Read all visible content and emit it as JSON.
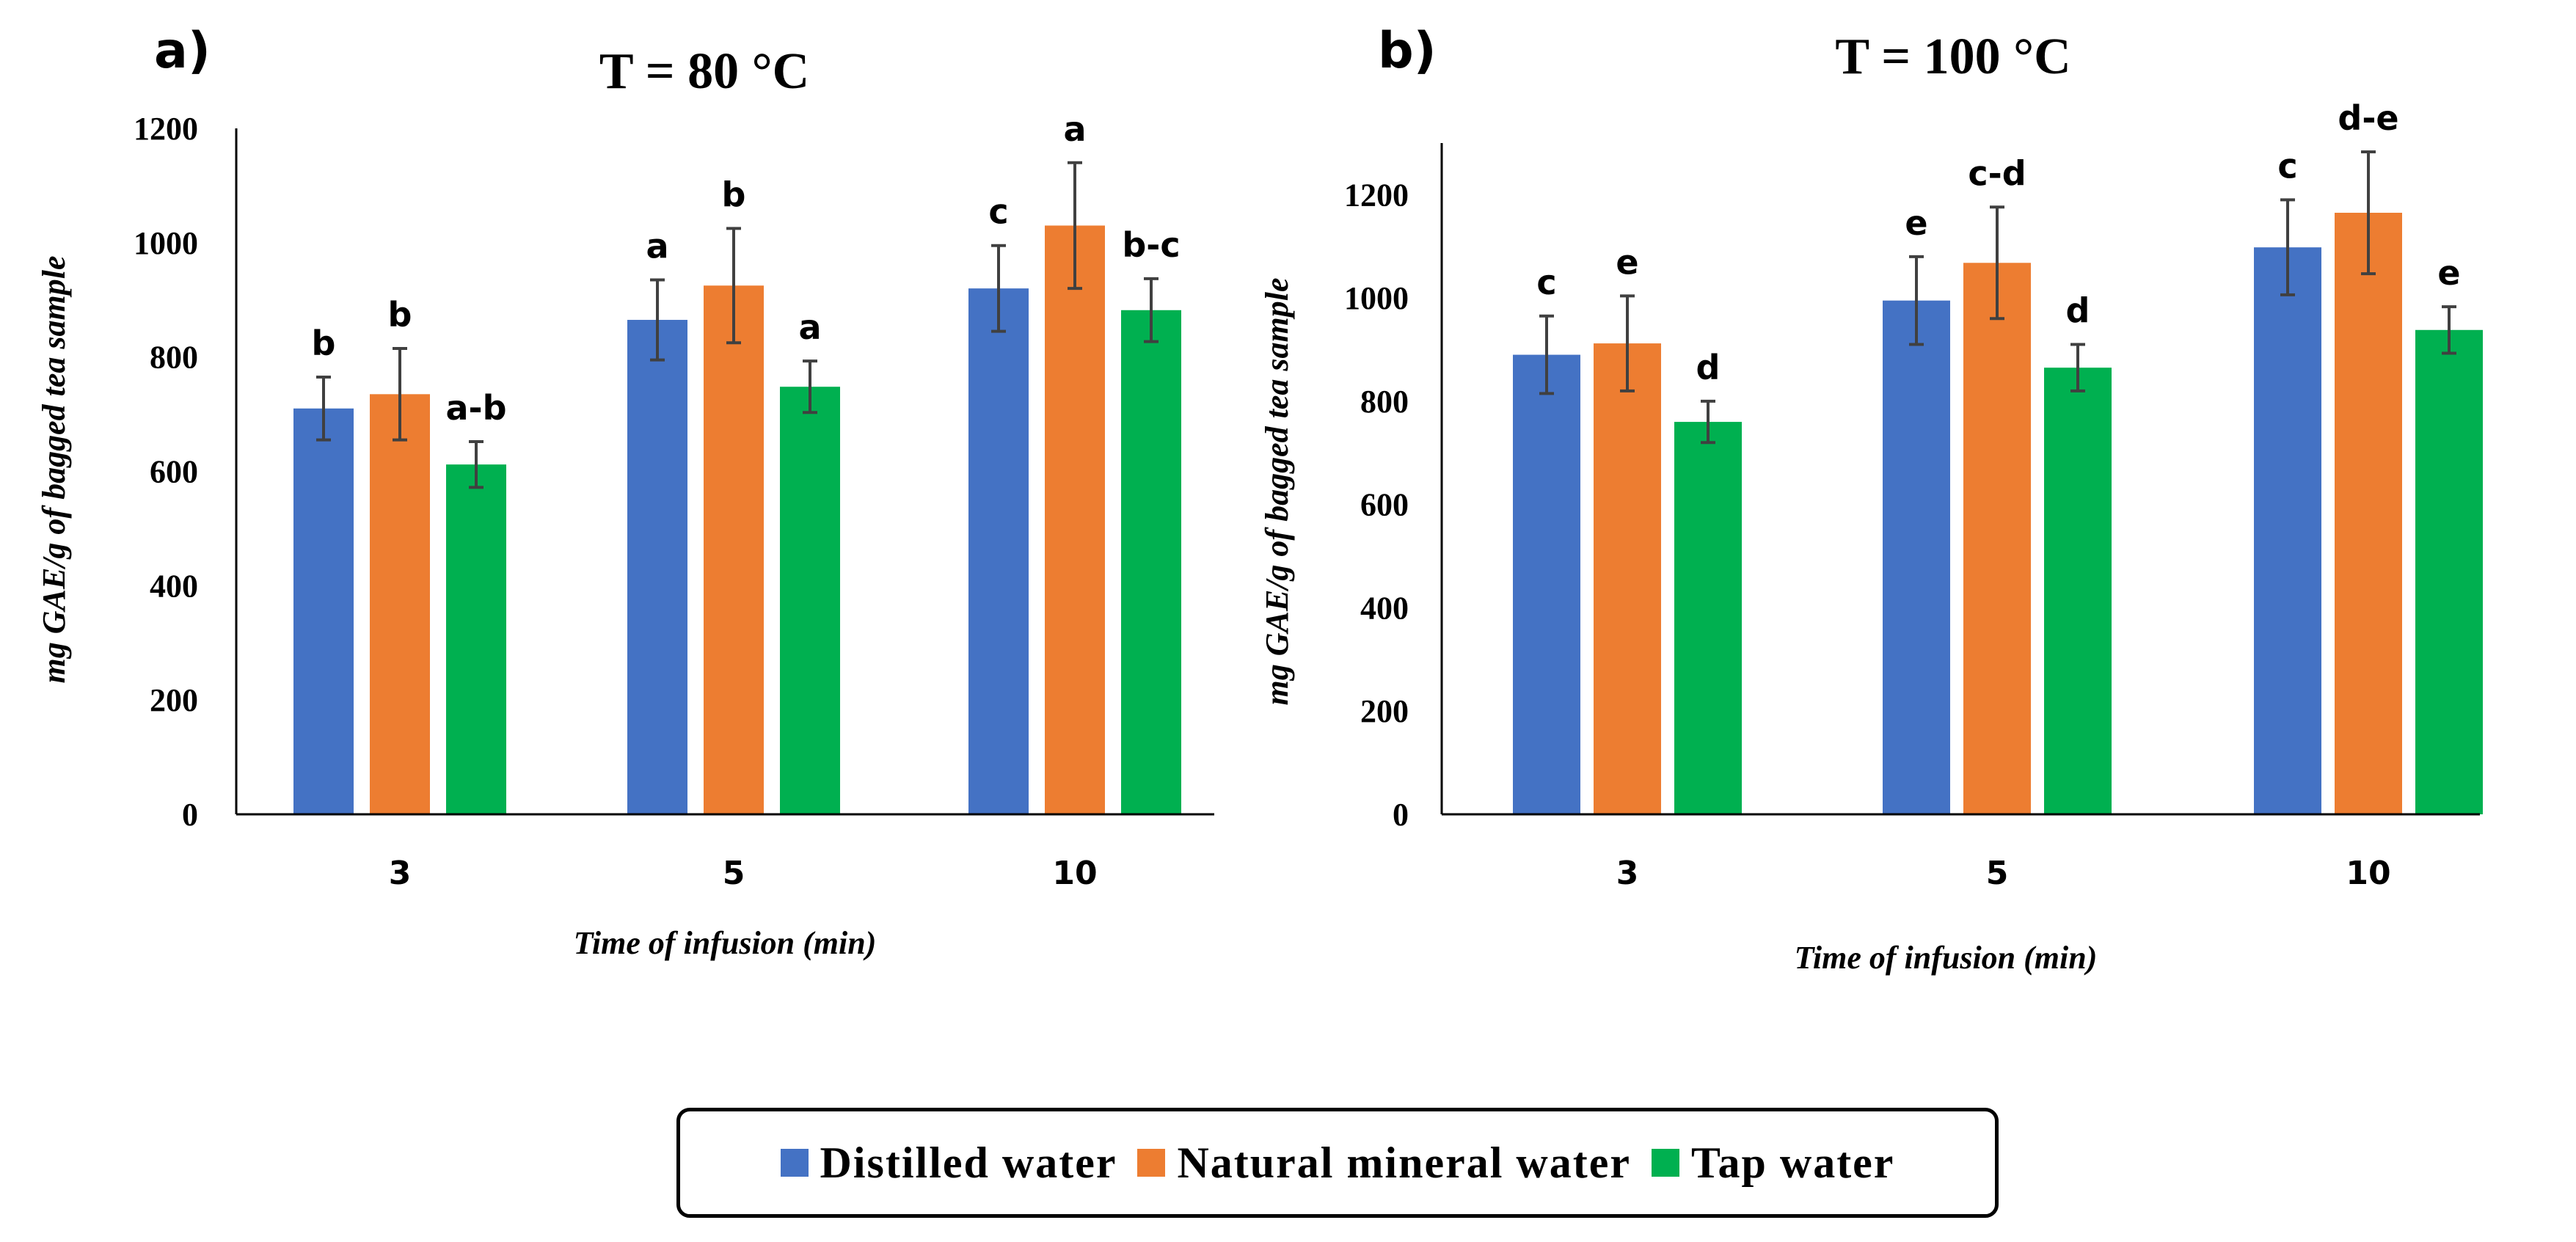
{
  "colors": {
    "distilled": "#4472C4",
    "mineral": "#ED7D31",
    "tap": "#00B050",
    "axis": "#000000",
    "errorbar": "#404040"
  },
  "legend": [
    {
      "key": "distilled",
      "label": "Distilled water"
    },
    {
      "key": "mineral",
      "label": "Natural mineral water"
    },
    {
      "key": "tap",
      "label": "Tap water"
    }
  ],
  "chart_data": [
    {
      "type": "bar",
      "panel": "a)",
      "title": "T = 80 °C",
      "xlabel": "Time of infusion (min)",
      "ylabel": "mg GAE/g of bagged tea sample",
      "categories": [
        "3",
        "5",
        "10"
      ],
      "ylim": [
        0,
        1200
      ],
      "yticks": [
        "0",
        "200",
        "400",
        "600",
        "800",
        "1000",
        "1200"
      ],
      "series": [
        {
          "key": "distilled",
          "name": "Distilled water",
          "values": [
            710,
            865,
            920
          ],
          "errors": [
            55,
            70,
            75
          ],
          "labels": [
            "b",
            "a",
            "c"
          ]
        },
        {
          "key": "mineral",
          "name": "Natural mineral water",
          "values": [
            735,
            925,
            1030
          ],
          "errors": [
            80,
            100,
            110
          ],
          "labels": [
            "b",
            "b",
            "a"
          ]
        },
        {
          "key": "tap",
          "name": "Tap water",
          "values": [
            612,
            748,
            882
          ],
          "errors": [
            40,
            45,
            55
          ],
          "labels": [
            "a-b",
            "a",
            "b-c"
          ]
        }
      ]
    },
    {
      "type": "bar",
      "panel": "b)",
      "title": "T = 100 °C",
      "xlabel": "Time of infusion (min)",
      "ylabel": "mg GAE/g of bagged tea sample",
      "categories": [
        "3",
        "5",
        "10"
      ],
      "ylim": [
        0,
        1300
      ],
      "yticks": [
        "0",
        "200",
        "400",
        "600",
        "800",
        "1000",
        "1200"
      ],
      "series": [
        {
          "key": "distilled",
          "name": "Distilled water",
          "values": [
            890,
            995,
            1098
          ],
          "errors": [
            75,
            85,
            92
          ],
          "labels": [
            "c",
            "e",
            "c"
          ]
        },
        {
          "key": "mineral",
          "name": "Natural mineral water",
          "values": [
            912,
            1068,
            1165
          ],
          "errors": [
            92,
            108,
            118
          ],
          "labels": [
            "e",
            "c-d",
            "d-e"
          ]
        },
        {
          "key": "tap",
          "name": "Tap water",
          "values": [
            760,
            865,
            938
          ],
          "errors": [
            40,
            45,
            45
          ],
          "labels": [
            "d",
            "d",
            "e"
          ]
        }
      ]
    }
  ]
}
